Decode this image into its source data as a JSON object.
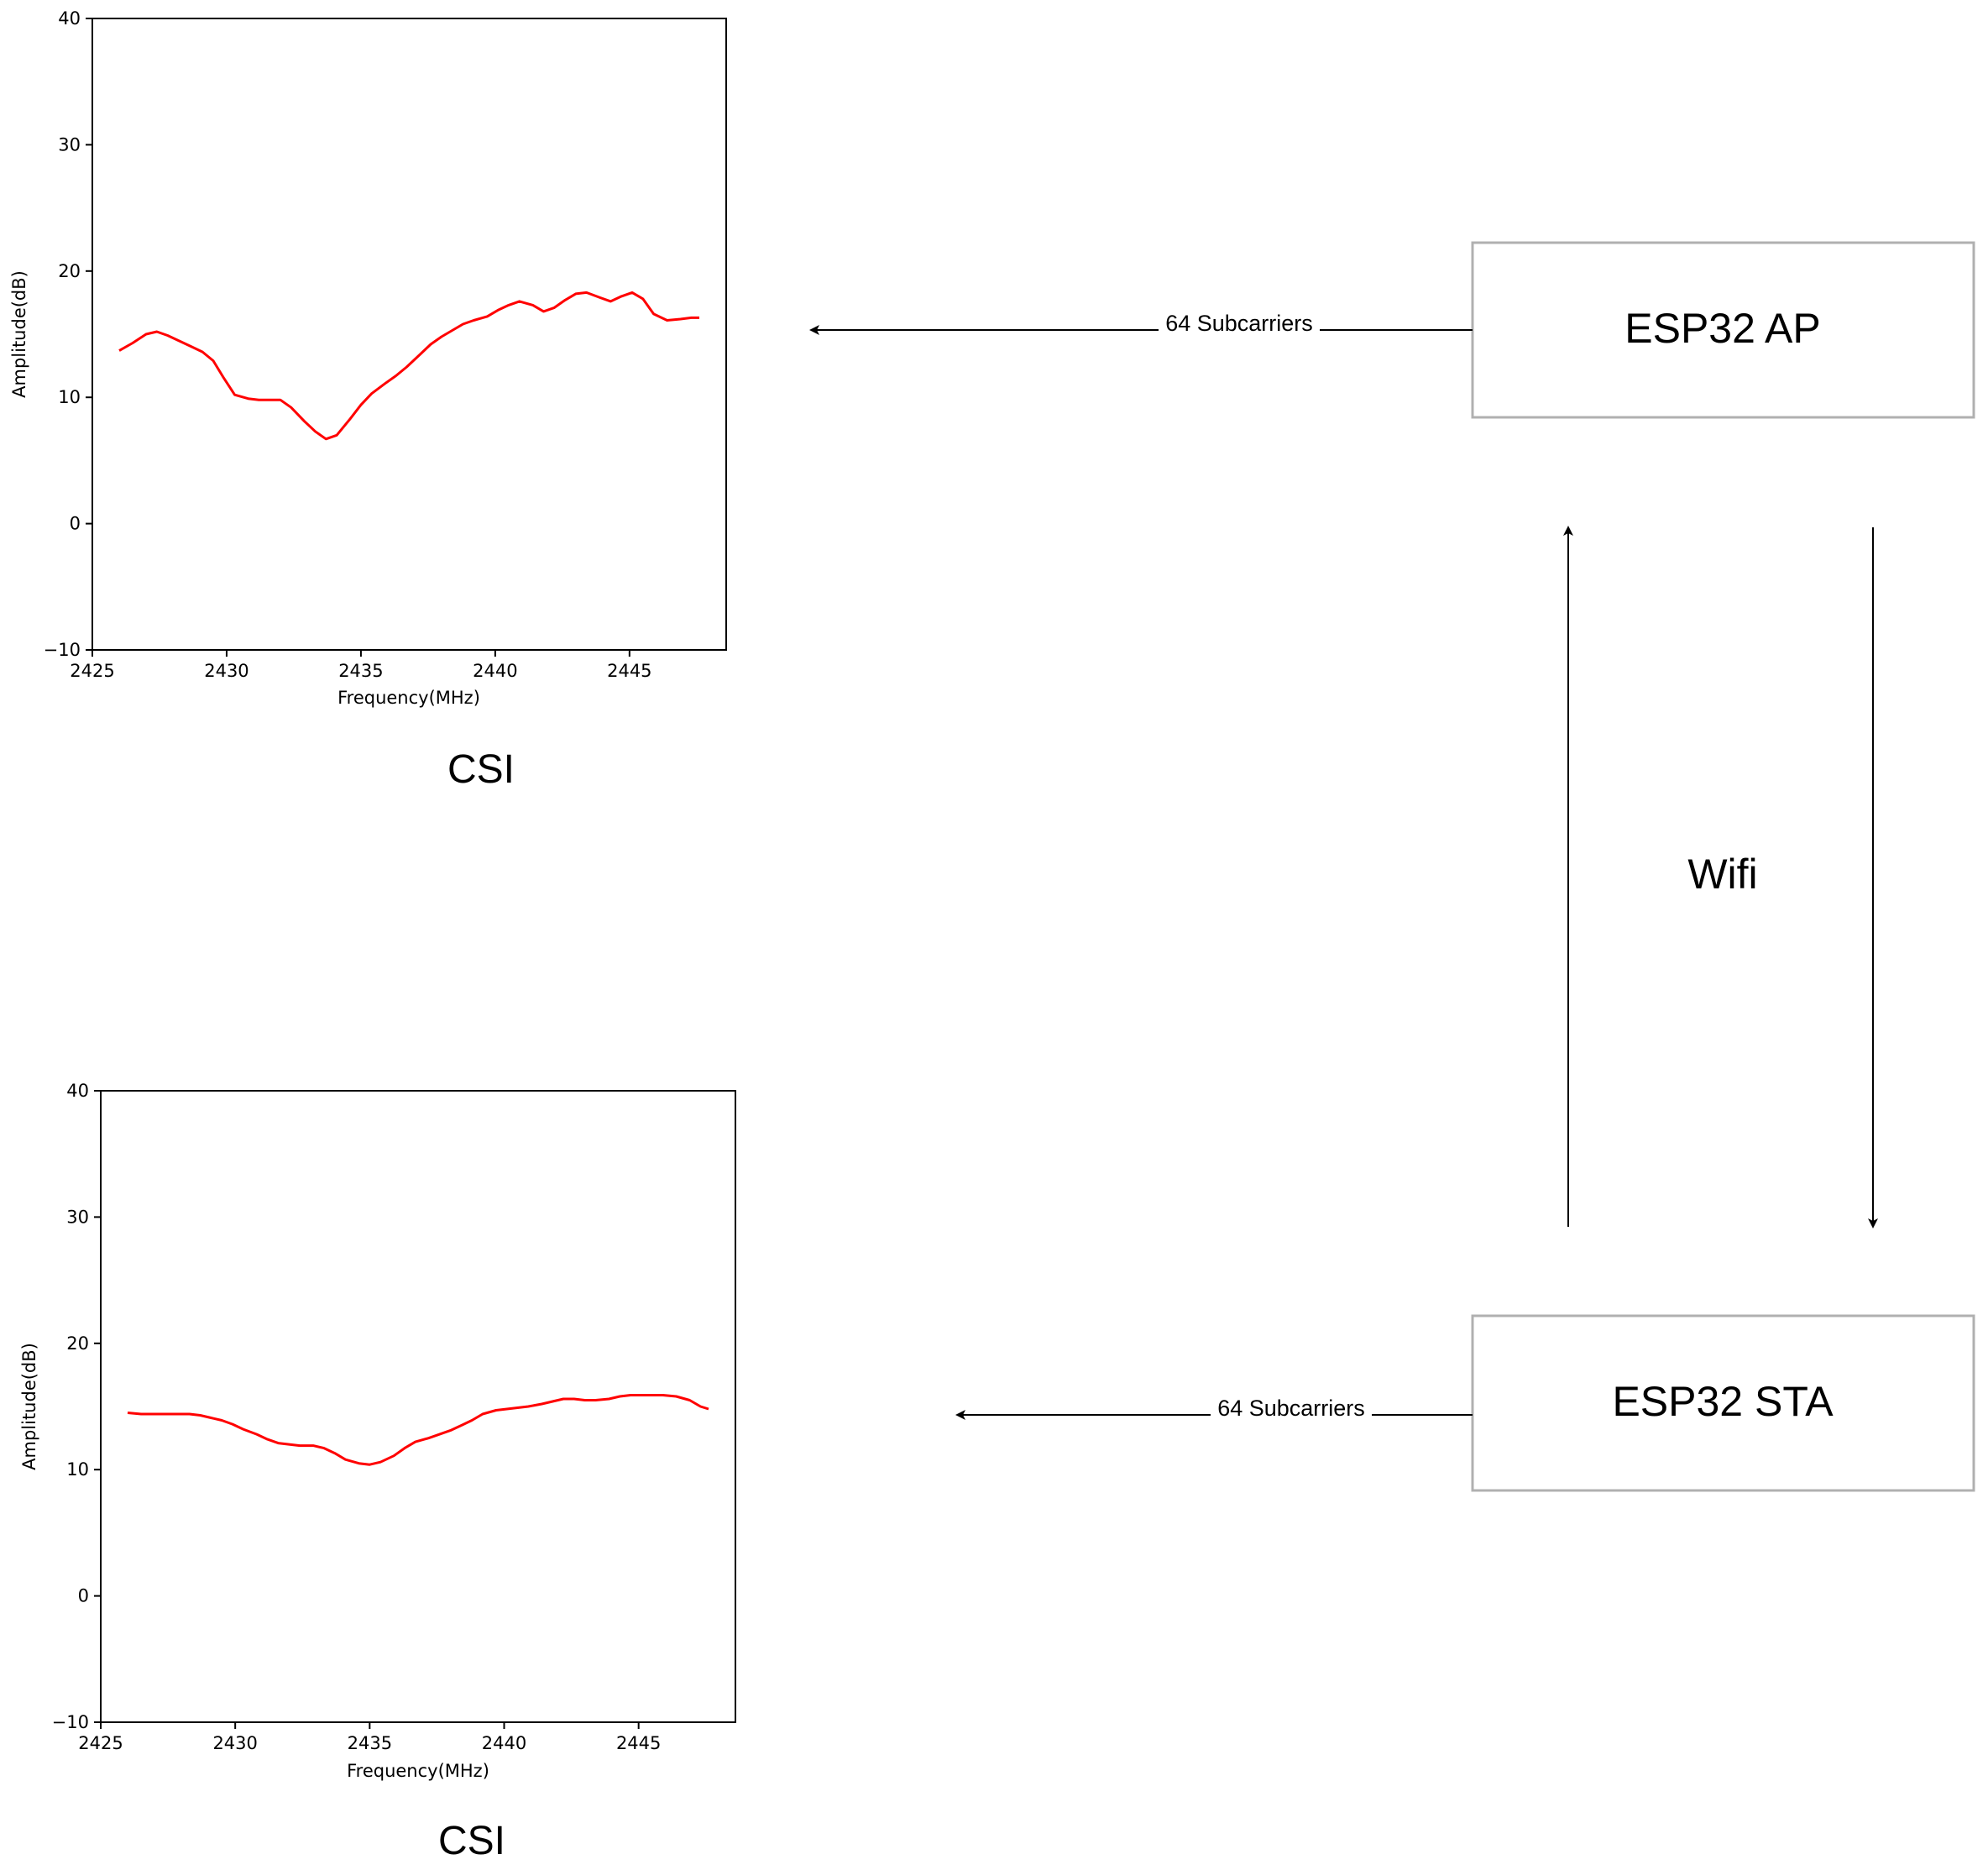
{
  "chart_data": [
    {
      "type": "line",
      "title": "",
      "caption": "CSI",
      "xlabel": "Frequency(MHz)",
      "ylabel": "Amplitude(dB)",
      "xlim": [
        2425,
        2448.6
      ],
      "ylim": [
        -10,
        40
      ],
      "xticks": [
        "2425",
        "2430",
        "2435",
        "2440",
        "2445"
      ],
      "yticks": [
        "−10",
        "0",
        "10",
        "20",
        "30",
        "40"
      ],
      "grid": false,
      "series": [
        {
          "color": "#ff0000",
          "x": [
            2426.0,
            2426.5,
            2427.0,
            2427.4,
            2427.8,
            2428.3,
            2428.7,
            2429.1,
            2429.5,
            2429.9,
            2430.3,
            2430.8,
            2431.2,
            2431.6,
            2432.0,
            2432.4,
            2432.9,
            2433.3,
            2433.7,
            2434.1,
            2434.6,
            2435.0,
            2435.4,
            2435.9,
            2436.3,
            2436.7,
            2437.2,
            2437.6,
            2438.0,
            2438.4,
            2438.8,
            2439.2,
            2439.7,
            2440.1,
            2440.5,
            2440.9,
            2441.4,
            2441.8,
            2442.2,
            2442.6,
            2443.0,
            2443.4,
            2443.9,
            2444.3,
            2444.7,
            2445.1,
            2445.5,
            2445.9,
            2446.4,
            2446.9,
            2447.3,
            2447.6
          ],
          "y": [
            13.7,
            14.3,
            15.0,
            15.2,
            14.9,
            14.4,
            14.0,
            13.6,
            12.9,
            11.5,
            10.2,
            9.9,
            9.8,
            9.8,
            9.8,
            9.2,
            8.1,
            7.3,
            6.7,
            7.0,
            8.3,
            9.4,
            10.3,
            11.1,
            11.7,
            12.4,
            13.4,
            14.2,
            14.8,
            15.3,
            15.8,
            16.1,
            16.4,
            16.9,
            17.3,
            17.6,
            17.3,
            16.8,
            17.1,
            17.7,
            18.2,
            18.3,
            17.9,
            17.6,
            18.0,
            18.3,
            17.8,
            16.6,
            16.1,
            16.2,
            16.3,
            16.3
          ]
        }
      ]
    },
    {
      "type": "line",
      "title": "",
      "caption": "CSI",
      "xlabel": "Frequency(MHz)",
      "ylabel": "Amplitude(dB)",
      "xlim": [
        2425,
        2448.6
      ],
      "ylim": [
        -10,
        40
      ],
      "xticks": [
        "2425",
        "2430",
        "2435",
        "2440",
        "2445"
      ],
      "yticks": [
        "−10",
        "0",
        "10",
        "20",
        "30",
        "40"
      ],
      "grid": false,
      "series": [
        {
          "color": "#ff0000",
          "x": [
            2426.0,
            2426.5,
            2427.0,
            2427.4,
            2427.8,
            2428.3,
            2428.7,
            2429.1,
            2429.5,
            2429.9,
            2430.3,
            2430.8,
            2431.2,
            2431.6,
            2432.0,
            2432.4,
            2432.9,
            2433.3,
            2433.7,
            2434.1,
            2434.6,
            2435.0,
            2435.4,
            2435.9,
            2436.3,
            2436.7,
            2437.2,
            2437.6,
            2438.0,
            2438.4,
            2438.8,
            2439.2,
            2439.7,
            2440.1,
            2440.5,
            2440.9,
            2441.4,
            2441.8,
            2442.2,
            2442.6,
            2443.0,
            2443.4,
            2443.9,
            2444.3,
            2444.7,
            2445.1,
            2445.5,
            2445.9,
            2446.4,
            2446.9,
            2447.3,
            2447.6
          ],
          "y": [
            14.5,
            14.4,
            14.4,
            14.4,
            14.4,
            14.4,
            14.3,
            14.1,
            13.9,
            13.6,
            13.2,
            12.8,
            12.4,
            12.1,
            12.0,
            11.9,
            11.9,
            11.7,
            11.3,
            10.8,
            10.5,
            10.4,
            10.6,
            11.1,
            11.7,
            12.2,
            12.5,
            12.8,
            13.1,
            13.5,
            13.9,
            14.4,
            14.7,
            14.8,
            14.9,
            15.0,
            15.2,
            15.4,
            15.6,
            15.6,
            15.5,
            15.5,
            15.6,
            15.8,
            15.9,
            15.9,
            15.9,
            15.9,
            15.8,
            15.5,
            15.0,
            14.8
          ]
        }
      ]
    }
  ],
  "diagram": {
    "nodes": [
      {
        "id": "ap",
        "label": "ESP32 AP"
      },
      {
        "id": "sta",
        "label": "ESP32 STA"
      }
    ],
    "edges": [
      {
        "from": "ap",
        "to": "csi-1",
        "label": "64 Subcarriers"
      },
      {
        "from": "sta",
        "to": "csi-2",
        "label": "64 Subcarriers"
      },
      {
        "from": "sta",
        "to": "ap",
        "label": ""
      },
      {
        "from": "ap",
        "to": "sta",
        "label": ""
      }
    ],
    "link_label": "Wifi"
  }
}
